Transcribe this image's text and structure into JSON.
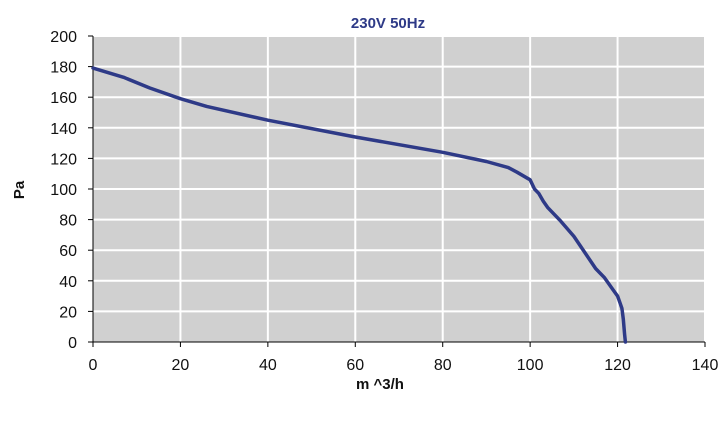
{
  "chart_data": {
    "type": "line",
    "title": "230V 50Hz",
    "xlabel": "m ^3/h",
    "ylabel": "Pa",
    "xlim": [
      0,
      140
    ],
    "ylim": [
      0,
      200
    ],
    "xticks": [
      0,
      20,
      40,
      60,
      80,
      100,
      120,
      140
    ],
    "yticks": [
      0,
      20,
      40,
      60,
      80,
      100,
      120,
      140,
      160,
      180,
      200
    ],
    "grid": true,
    "background_color": "#d0d0d0",
    "grid_color": "#ffffff",
    "series": [
      {
        "color": "#2e3a87",
        "points": [
          [
            0,
            179
          ],
          [
            7,
            173
          ],
          [
            13,
            166
          ],
          [
            20,
            159
          ],
          [
            26,
            154
          ],
          [
            40,
            145
          ],
          [
            60,
            134
          ],
          [
            80,
            124
          ],
          [
            90,
            118
          ],
          [
            95,
            114
          ],
          [
            97,
            111
          ],
          [
            100,
            106
          ],
          [
            101,
            100
          ],
          [
            102,
            97
          ],
          [
            103,
            92
          ],
          [
            104,
            88
          ],
          [
            107,
            79
          ],
          [
            110,
            69
          ],
          [
            115,
            48
          ],
          [
            117,
            42
          ],
          [
            119,
            34
          ],
          [
            120,
            30
          ],
          [
            121,
            22
          ],
          [
            121.3,
            15
          ],
          [
            121.6,
            5
          ],
          [
            121.8,
            0
          ]
        ]
      }
    ]
  }
}
